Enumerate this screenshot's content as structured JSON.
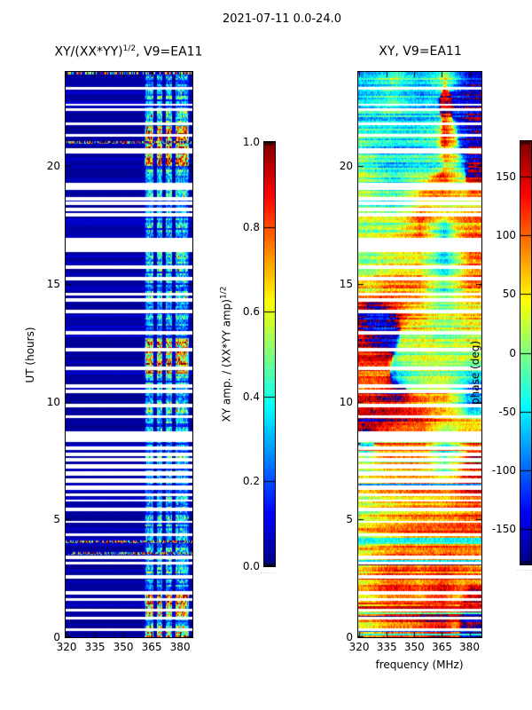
{
  "figure": {
    "title": "2021-07-11 0.0-24.0"
  },
  "panels": {
    "amplitude": {
      "title_prefix": "XY/(XX*YY)",
      "title_sup": "1/2",
      "title_suffix": ", V9=EA11",
      "ylabel": "UT (hours)"
    },
    "phase": {
      "title": "XY, V9=EA11",
      "xlabel": "frequency (MHz)"
    }
  },
  "colorbars": {
    "amplitude": {
      "label_prefix": "XY amp. / (XX*YY amp)",
      "label_sup": "1/2",
      "tick_labels": [
        "1.0",
        "0.8",
        "0.6",
        "0.4",
        "0.2",
        "0.0"
      ],
      "minor_marks": "........"
    },
    "phase": {
      "label": "phase (deg)",
      "tick_labels": [
        "150",
        "100",
        "50",
        "0",
        "-50",
        "-100",
        "-150"
      ],
      "minor_marks": "........"
    }
  },
  "chart_data": [
    {
      "type": "heatmap",
      "name": "xy_normalized_amplitude_dynamic_spectrum",
      "title": "XY/(XX*YY)^(1/2), V9=EA11",
      "xlabel": "",
      "ylabel": "UT (hours)",
      "xlim": [
        319.5,
        386.5
      ],
      "ylim": [
        0,
        24
      ],
      "xticks": [
        320,
        335,
        350,
        365,
        380
      ],
      "yticks": [
        0,
        5,
        10,
        15,
        20
      ],
      "colormap": "jet",
      "grid": false,
      "colorbar": {
        "label": "XY amp. / (XX*YY amp)^(1/2)",
        "range": [
          0.0,
          1.0
        ],
        "ticks": [
          1.0,
          0.8,
          0.6,
          0.4,
          0.2,
          0.0
        ],
        "position": "right-of-panel"
      },
      "background_amplitude": 0.05,
      "rfi_band_mhz": [
        361,
        385
      ],
      "band_gap_mhz": [
        [
          365.8,
          367.6
        ],
        [
          370.8,
          372.6
        ],
        [
          375.6,
          377.8
        ]
      ],
      "strong_band_hours": [
        [
          0.8,
          1.8
        ],
        [
          11.2,
          12.7
        ],
        [
          20.0,
          21.7
        ]
      ],
      "speckle_row_hours": [
        23.93,
        21.0,
        4.05,
        3.55
      ],
      "missing_time_ranges": [
        [
          0.28,
          0.38
        ],
        [
          0.75,
          0.85
        ],
        [
          1.1,
          1.2
        ],
        [
          1.55,
          1.65
        ],
        [
          1.82,
          1.95
        ],
        [
          2.5,
          2.62
        ],
        [
          3.1,
          3.2
        ],
        [
          3.33,
          3.45
        ],
        [
          4.3,
          4.42
        ],
        [
          4.85,
          4.95
        ],
        [
          5.35,
          5.5
        ],
        [
          5.75,
          5.85
        ],
        [
          6.0,
          6.12
        ],
        [
          6.25,
          6.45
        ],
        [
          6.55,
          6.75
        ],
        [
          6.85,
          7.05
        ],
        [
          7.15,
          7.35
        ],
        [
          7.45,
          7.6
        ],
        [
          7.7,
          7.85
        ],
        [
          7.95,
          8.1
        ],
        [
          8.3,
          8.75
        ],
        [
          9.3,
          9.42
        ],
        [
          9.75,
          9.9
        ],
        [
          10.35,
          10.5
        ],
        [
          10.6,
          10.72
        ],
        [
          11.35,
          11.5
        ],
        [
          12.15,
          12.3
        ],
        [
          12.85,
          13.0
        ],
        [
          13.75,
          13.9
        ],
        [
          14.25,
          14.4
        ],
        [
          14.5,
          14.62
        ],
        [
          15.15,
          15.3
        ],
        [
          15.65,
          15.8
        ],
        [
          16.35,
          16.95
        ],
        [
          17.85,
          18.0
        ],
        [
          18.1,
          18.25
        ],
        [
          18.35,
          18.5
        ],
        [
          18.55,
          18.7
        ],
        [
          19.0,
          19.3
        ],
        [
          20.55,
          20.75
        ],
        [
          21.25,
          21.35
        ],
        [
          21.75,
          21.85
        ],
        [
          22.35,
          22.45
        ],
        [
          22.55,
          22.65
        ],
        [
          23.25,
          23.35
        ]
      ],
      "summary_grid": {
        "freq_bin_centers_mhz": [
          326,
          339,
          352,
          365,
          378
        ],
        "hour_bin_edges": [
          0,
          3,
          6,
          9,
          12,
          15,
          18,
          21,
          24
        ],
        "values": [
          [
            0.05,
            0.05,
            0.05,
            0.55,
            0.45
          ],
          [
            0.05,
            0.05,
            0.05,
            0.3,
            0.25
          ],
          [
            0.04,
            0.04,
            0.05,
            0.3,
            0.25
          ],
          [
            0.05,
            0.05,
            0.05,
            0.6,
            0.4
          ],
          [
            0.05,
            0.05,
            0.05,
            0.35,
            0.3
          ],
          [
            0.04,
            0.04,
            0.04,
            0.3,
            0.25
          ],
          [
            0.05,
            0.05,
            0.05,
            0.65,
            0.45
          ],
          [
            0.06,
            0.06,
            0.06,
            0.35,
            0.3
          ]
        ]
      }
    },
    {
      "type": "heatmap",
      "name": "xy_phase_dynamic_spectrum",
      "title": "XY, V9=EA11",
      "xlabel": "frequency (MHz)",
      "ylabel": "",
      "xlim": [
        319.5,
        386.5
      ],
      "ylim": [
        0,
        24
      ],
      "xticks": [
        320,
        335,
        350,
        365,
        380
      ],
      "yticks": [
        0,
        5,
        10,
        15,
        20
      ],
      "colormap": "jet",
      "grid": false,
      "colorbar": {
        "label": "phase (deg)",
        "range": [
          -180,
          180
        ],
        "ticks": [
          150,
          100,
          50,
          0,
          -50,
          -100,
          -150
        ],
        "position": "right-of-panel"
      },
      "streaky_rows_below_hour": 8.3,
      "missing_time_ranges": "same-as-amplitude-panel",
      "summary_grid_deg": {
        "freq_bin_centers_mhz": [
          326,
          339,
          352,
          365,
          378
        ],
        "hour_bin_edges": [
          0,
          3,
          6,
          9,
          12,
          15,
          18,
          21,
          24
        ],
        "values": [
          [
            50,
            70,
            40,
            120,
            -120
          ],
          [
            60,
            50,
            70,
            100,
            140
          ],
          [
            80,
            60,
            50,
            -60,
            120
          ],
          [
            130,
            150,
            120,
            100,
            -80
          ],
          [
            110,
            130,
            140,
            -50,
            90
          ],
          [
            -30,
            70,
            130,
            -130,
            150
          ],
          [
            10,
            -50,
            90,
            150,
            -140
          ],
          [
            -70,
            50,
            -40,
            70,
            -110
          ]
        ]
      }
    }
  ]
}
